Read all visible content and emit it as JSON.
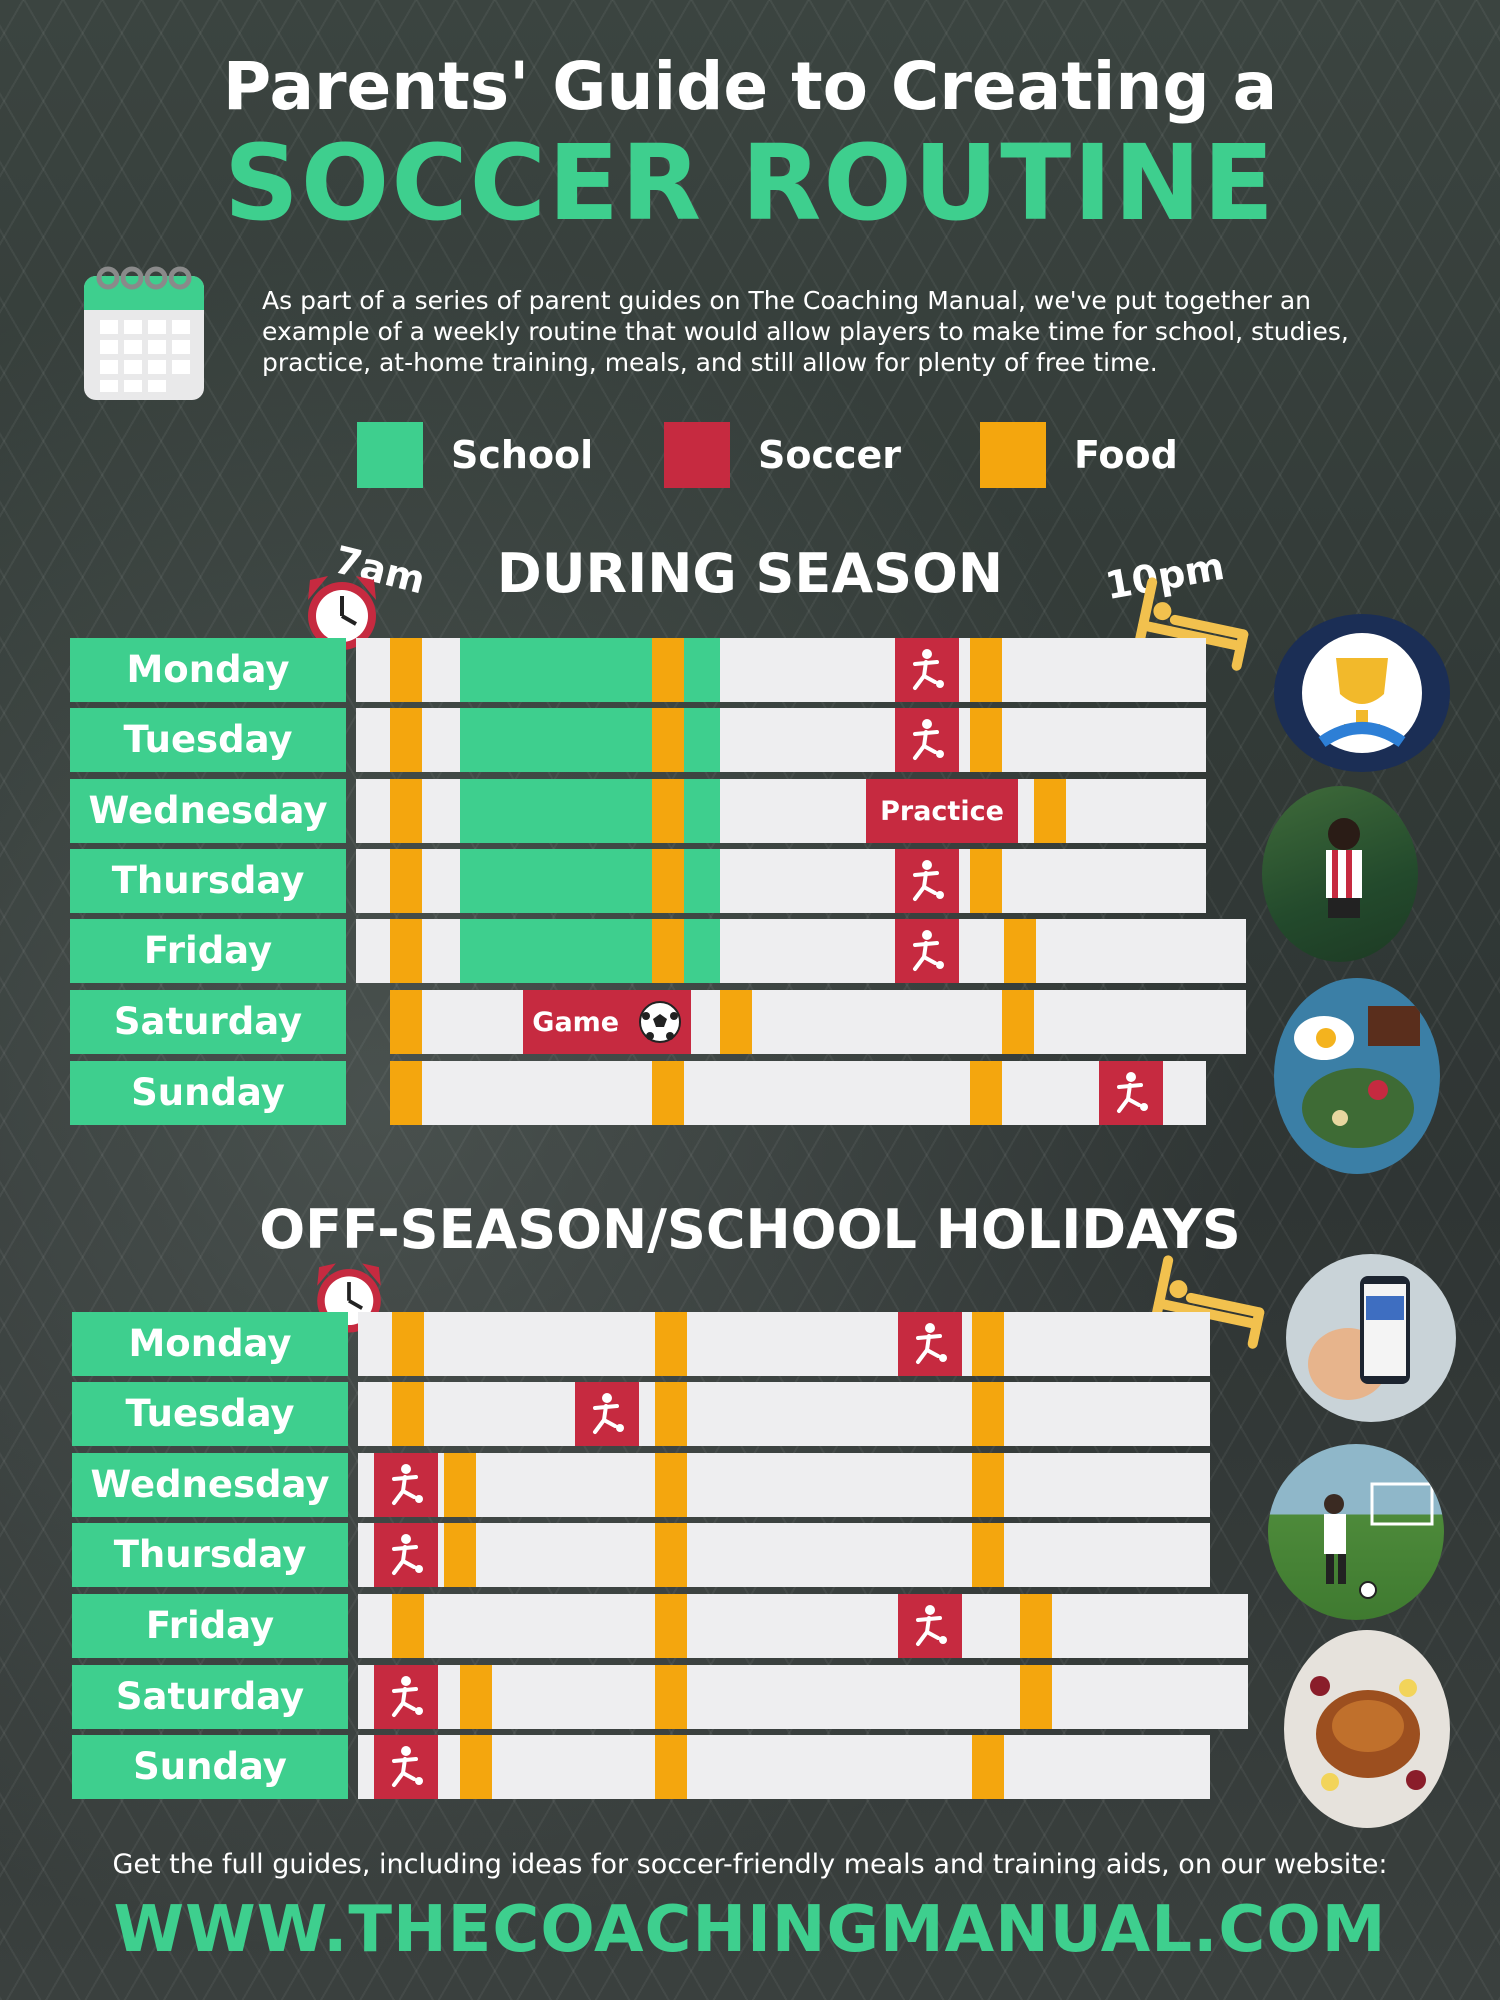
{
  "header": {
    "title_line1": "Parents' Guide to Creating a",
    "title_line2": "SOCCER ROUTINE",
    "intro": "As part of a series of parent guides on The Coaching Manual, we've put together an example of a weekly routine that would allow players to make time for school, studies, practice, at-home training, meals, and still allow for plenty of free time."
  },
  "legend": [
    {
      "label": "School",
      "color": "#3ecf8e"
    },
    {
      "label": "Soccer",
      "color": "#c62a40"
    },
    {
      "label": "Food",
      "color": "#f4a60e"
    }
  ],
  "during_season": {
    "title": "DURING SEASON",
    "start_label": "7am",
    "end_label": "10pm",
    "practice_label": "Practice",
    "game_label": "Game",
    "days": [
      "Monday",
      "Tuesday",
      "Wednesday",
      "Thursday",
      "Friday",
      "Saturday",
      "Sunday"
    ]
  },
  "off_season": {
    "title": "OFF-SEASON/SCHOOL HOLIDAYS",
    "days": [
      "Monday",
      "Tuesday",
      "Wednesday",
      "Thursday",
      "Friday",
      "Saturday",
      "Sunday"
    ]
  },
  "footer": {
    "text": "Get the full guides, including ideas for soccer-friendly meals and training aids, on our website:",
    "url": "WWW.THECOACHINGMANUAL.COM"
  },
  "icons": [
    "calendar-icon",
    "alarm-clock-icon",
    "bed-icon",
    "soccer-player-icon",
    "soccer-ball-icon",
    "trophy-icon"
  ]
}
